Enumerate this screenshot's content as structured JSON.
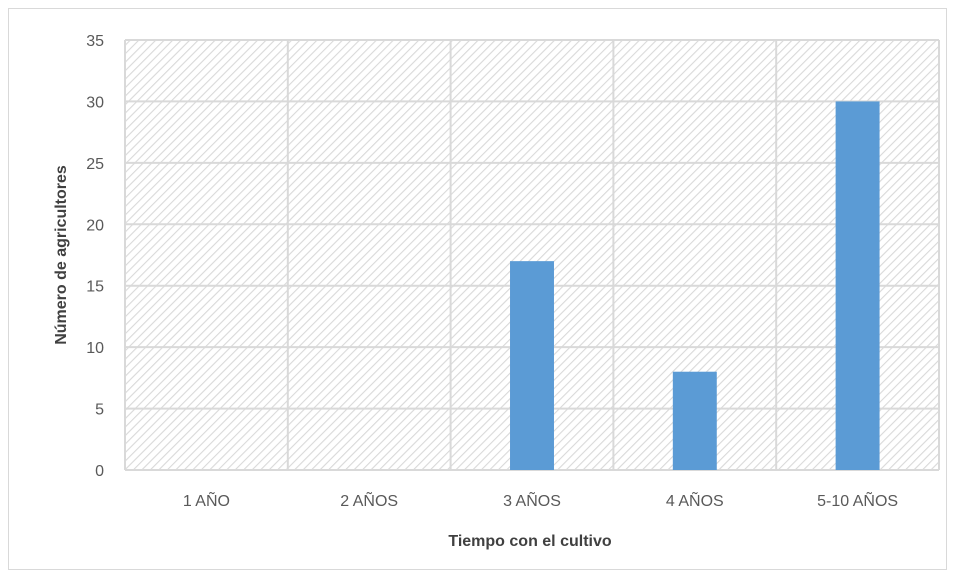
{
  "chart_data": {
    "type": "bar",
    "categories": [
      "1 AÑO",
      "2 AÑOS",
      "3 AÑOS",
      "4 AÑOS",
      "5-10 AÑOS"
    ],
    "values": [
      0,
      0,
      17,
      8,
      30
    ],
    "title": "",
    "xlabel": "Tiempo con el cultivo",
    "ylabel": "Número de agricultores",
    "ylim": [
      0,
      35
    ],
    "yticks": [
      0,
      5,
      10,
      15,
      20,
      25,
      30,
      35
    ],
    "grid": true,
    "legend": "none",
    "plot_background": "hatched",
    "colors": {
      "bar": "#5b9bd5",
      "grid": "#d9d9d9",
      "hatch": "#d9d9d9"
    }
  }
}
